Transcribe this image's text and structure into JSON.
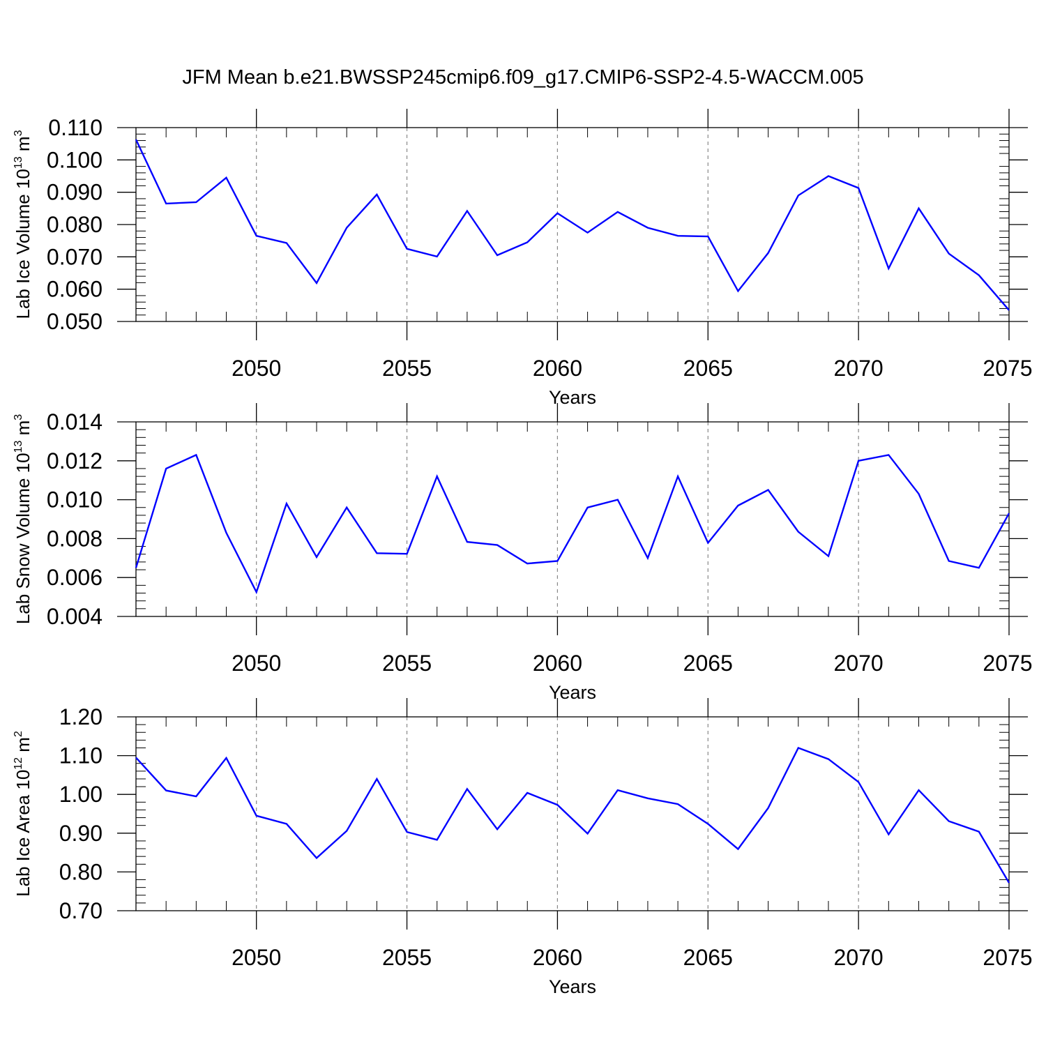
{
  "title": "JFM Mean b.e21.BWSSP245cmip6.f09_g17.CMIP6-SSP2-4.5-WACCM.005",
  "chart_data": [
    {
      "type": "line",
      "title": "",
      "xlabel": "Years",
      "ylabel": {
        "text": "Lab Ice Volume 10",
        "exp": "13",
        "unit": " m",
        "unit_exp": "3"
      },
      "xlim": [
        2046,
        2075
      ],
      "ylim": [
        0.05,
        0.11
      ],
      "xticks": [
        2050,
        2055,
        2060,
        2065,
        2070,
        2075
      ],
      "yticks": [
        0.05,
        0.06,
        0.07,
        0.08,
        0.09,
        0.1,
        0.11
      ],
      "ytick_labels": [
        "0.050",
        "0.060",
        "0.070",
        "0.080",
        "0.090",
        "0.100",
        "0.110"
      ],
      "grid": "vertical dashed at major x ticks",
      "series": [
        {
          "color": "#0000ff",
          "x": [
            2046,
            2047,
            2048,
            2049,
            2050,
            2051,
            2052,
            2053,
            2054,
            2055,
            2056,
            2057,
            2058,
            2059,
            2060,
            2061,
            2062,
            2063,
            2064,
            2065,
            2066,
            2067,
            2068,
            2069,
            2070,
            2071,
            2072,
            2073,
            2074,
            2075
          ],
          "y": [
            0.1063,
            0.0865,
            0.0869,
            0.0945,
            0.0765,
            0.0743,
            0.0619,
            0.079,
            0.0893,
            0.0725,
            0.0701,
            0.0842,
            0.0705,
            0.0745,
            0.0835,
            0.0775,
            0.0839,
            0.079,
            0.0765,
            0.0763,
            0.0594,
            0.0712,
            0.089,
            0.095,
            0.0913,
            0.0664,
            0.085,
            0.071,
            0.0643,
            0.0535
          ]
        }
      ]
    },
    {
      "type": "line",
      "title": "",
      "xlabel": "Years",
      "ylabel": {
        "text": "Lab Snow Volume 10",
        "exp": "13",
        "unit": " m",
        "unit_exp": "3"
      },
      "xlim": [
        2046,
        2075
      ],
      "ylim": [
        0.004,
        0.014
      ],
      "xticks": [
        2050,
        2055,
        2060,
        2065,
        2070,
        2075
      ],
      "yticks": [
        0.004,
        0.006,
        0.008,
        0.01,
        0.012,
        0.014
      ],
      "ytick_labels": [
        "0.004",
        "0.006",
        "0.008",
        "0.010",
        "0.012",
        "0.014"
      ],
      "grid": "vertical dashed at major x ticks",
      "series": [
        {
          "color": "#0000ff",
          "x": [
            2046,
            2047,
            2048,
            2049,
            2050,
            2051,
            2052,
            2053,
            2054,
            2055,
            2056,
            2057,
            2058,
            2059,
            2060,
            2061,
            2062,
            2063,
            2064,
            2065,
            2066,
            2067,
            2068,
            2069,
            2070,
            2071,
            2072,
            2073,
            2074,
            2075
          ],
          "y": [
            0.0065,
            0.0116,
            0.0123,
            0.0083,
            0.00525,
            0.0098,
            0.00705,
            0.0096,
            0.00725,
            0.00722,
            0.0112,
            0.00783,
            0.00767,
            0.00672,
            0.00685,
            0.0096,
            0.01,
            0.007,
            0.0112,
            0.00778,
            0.0097,
            0.0105,
            0.00835,
            0.0071,
            0.012,
            0.0123,
            0.0103,
            0.00685,
            0.0065,
            0.0093
          ]
        }
      ]
    },
    {
      "type": "line",
      "title": "",
      "xlabel": "Years",
      "ylabel": {
        "text": "Lab Ice Area 10",
        "exp": "12",
        "unit": " m",
        "unit_exp": "2"
      },
      "xlim": [
        2046,
        2075
      ],
      "ylim": [
        0.7,
        1.2
      ],
      "xticks": [
        2050,
        2055,
        2060,
        2065,
        2070,
        2075
      ],
      "yticks": [
        0.7,
        0.8,
        0.9,
        1.0,
        1.1,
        1.2
      ],
      "ytick_labels": [
        "0.70",
        "0.80",
        "0.90",
        "1.00",
        "1.10",
        "1.20"
      ],
      "grid": "vertical dashed at major x ticks",
      "series": [
        {
          "color": "#0000ff",
          "x": [
            2046,
            2047,
            2048,
            2049,
            2050,
            2051,
            2052,
            2053,
            2054,
            2055,
            2056,
            2057,
            2058,
            2059,
            2060,
            2061,
            2062,
            2063,
            2064,
            2065,
            2066,
            2067,
            2068,
            2069,
            2070,
            2071,
            2072,
            2073,
            2074,
            2075
          ],
          "y": [
            1.095,
            1.01,
            0.995,
            1.094,
            0.945,
            0.924,
            0.836,
            0.906,
            1.04,
            0.903,
            0.883,
            1.014,
            0.91,
            1.004,
            0.973,
            0.899,
            1.011,
            0.99,
            0.975,
            0.924,
            0.859,
            0.965,
            1.12,
            1.091,
            1.032,
            0.897,
            1.011,
            0.931,
            0.904,
            0.772
          ]
        }
      ]
    }
  ]
}
